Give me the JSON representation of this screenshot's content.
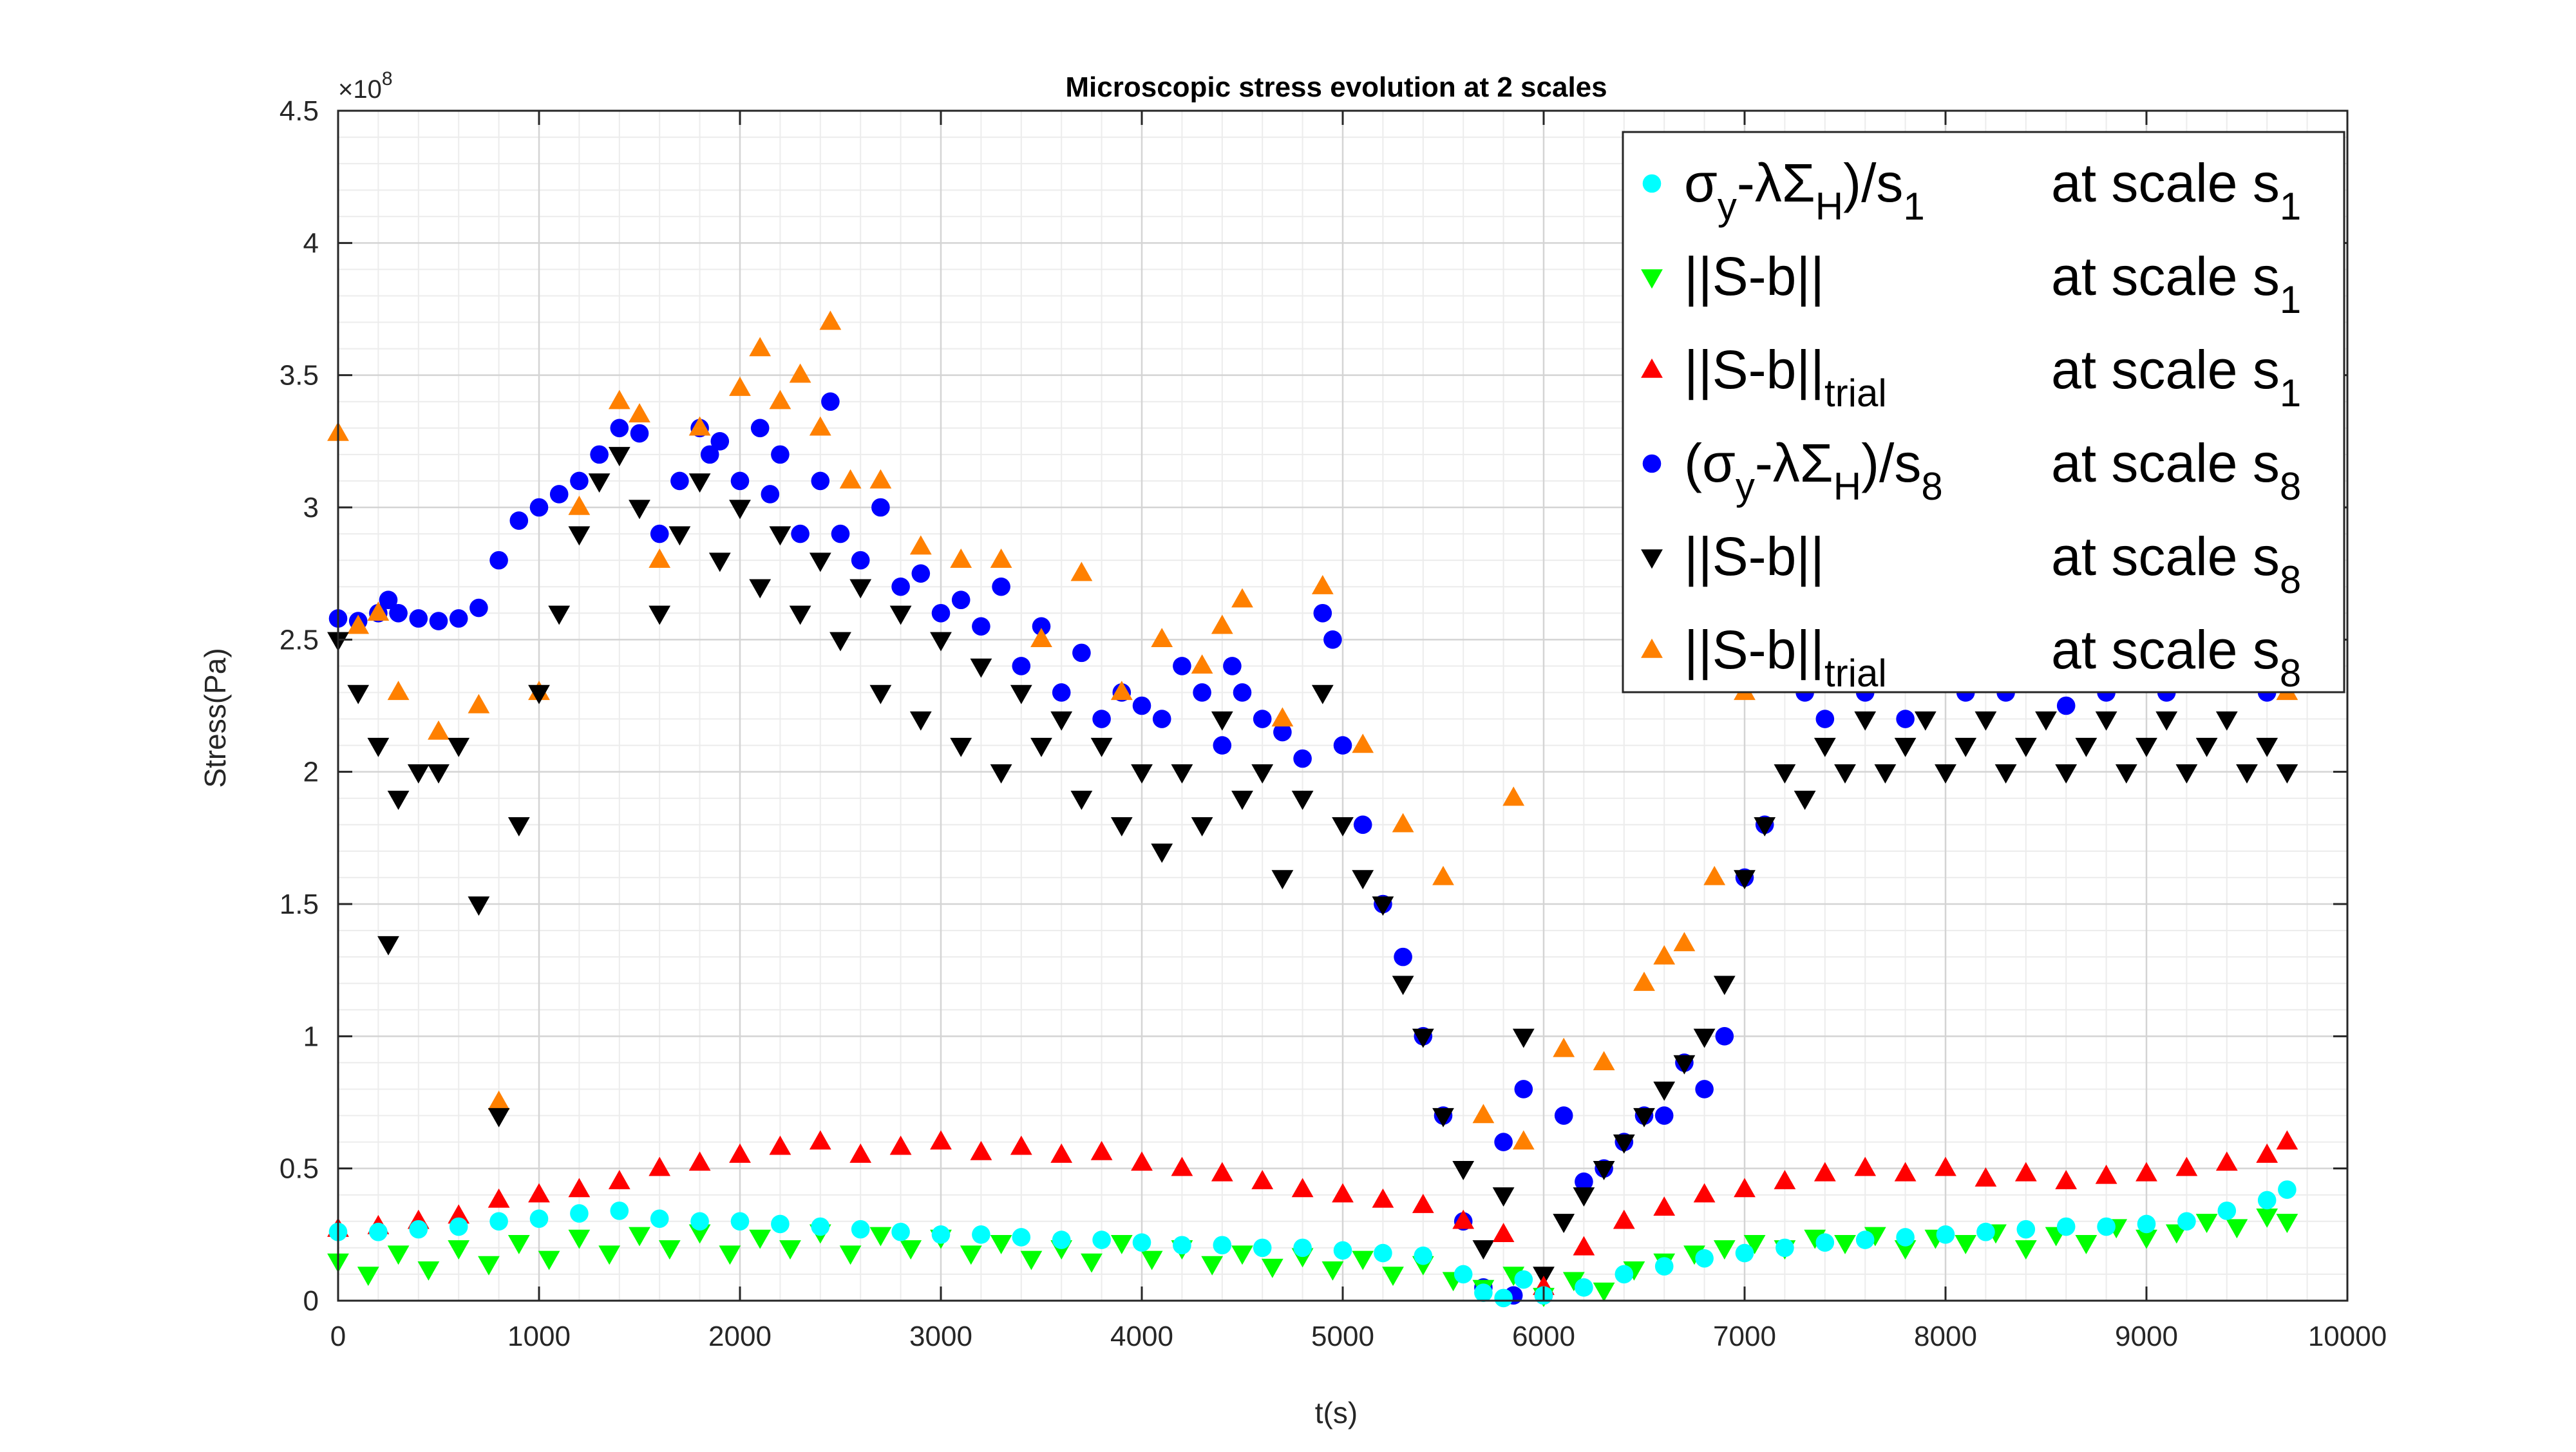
{
  "chart_data": {
    "type": "scatter",
    "title": "Microscopic stress evolution at 2 scales",
    "xlabel": "t(s)",
    "ylabel": "Stress(Pa)",
    "y_exponent_label": "×10",
    "y_exponent_power": "8",
    "xlim": [
      0,
      10000
    ],
    "ylim": [
      0,
      4.5
    ],
    "x_ticks": [
      "0",
      "1000",
      "2000",
      "3000",
      "4000",
      "5000",
      "6000",
      "7000",
      "8000",
      "9000",
      "10000"
    ],
    "y_ticks": [
      "0",
      "0.5",
      "1",
      "1.5",
      "2",
      "2.5",
      "3",
      "3.5",
      "4",
      "4.5"
    ],
    "grid": true,
    "minor_grid": true,
    "legend_position": "top-right",
    "colors": {
      "cyan": "#00ffff",
      "green": "#00ff00",
      "red": "#ff0000",
      "blue": "#0000ff",
      "black": "#000000",
      "orange": "#ff8000"
    },
    "legend": [
      {
        "marker": "circle",
        "color": "#00ffff",
        "label_main": "(σ",
        "label_parts": [
          [
            "σ",
            ""
          ],
          [
            "y",
            "sub"
          ],
          [
            "-λΣ",
            ""
          ],
          [
            "H",
            "sub"
          ],
          [
            ")/s",
            ""
          ],
          [
            "1",
            "sub"
          ]
        ],
        "scale_text": "at scale s",
        "scale_sub": "1"
      },
      {
        "marker": "triangle-down",
        "color": "#00ff00",
        "label_parts": [
          [
            "||S-b||",
            ""
          ]
        ],
        "scale_text": "at scale s",
        "scale_sub": "1"
      },
      {
        "marker": "triangle-up",
        "color": "#ff0000",
        "label_parts": [
          [
            "||S-b||",
            ""
          ],
          [
            "trial",
            "sub"
          ]
        ],
        "scale_text": "at scale s",
        "scale_sub": "1"
      },
      {
        "marker": "circle",
        "color": "#0000ff",
        "label_parts": [
          [
            "(σ",
            ""
          ],
          [
            "y",
            "sub"
          ],
          [
            "-λΣ",
            ""
          ],
          [
            "H",
            "sub"
          ],
          [
            ")/s",
            ""
          ],
          [
            "8",
            "sub"
          ]
        ],
        "scale_text": "at scale s",
        "scale_sub": "8"
      },
      {
        "marker": "triangle-down",
        "color": "#000000",
        "label_parts": [
          [
            "||S-b||",
            ""
          ]
        ],
        "scale_text": "at scale s",
        "scale_sub": "8"
      },
      {
        "marker": "triangle-up",
        "color": "#ff8000",
        "label_parts": [
          [
            "||S-b||",
            ""
          ],
          [
            "trial",
            "sub"
          ]
        ],
        "scale_text": "at scale s",
        "scale_sub": "8"
      }
    ],
    "series": [
      {
        "color": "#0000ff",
        "marker": "circle",
        "x": [
          0,
          100,
          200,
          250,
          300,
          400,
          500,
          600,
          700,
          800,
          900,
          1000,
          1100,
          1200,
          1300,
          1400,
          1500,
          1600,
          1700,
          1800,
          1850,
          1900,
          2000,
          2100,
          2150,
          2200,
          2300,
          2400,
          2450,
          2500,
          2600,
          2700,
          2800,
          2900,
          3000,
          3100,
          3200,
          3300,
          3400,
          3500,
          3600,
          3700,
          3800,
          3900,
          4000,
          4100,
          4200,
          4300,
          4400,
          4450,
          4500,
          4600,
          4700,
          4800,
          4900,
          4950,
          5000,
          5100,
          5200,
          5300,
          5400,
          5500,
          5600,
          5700,
          5800,
          5850,
          5900,
          6000,
          6100,
          6200,
          6300,
          6400,
          6500,
          6600,
          6700,
          6800,
          6900,
          7000,
          7100,
          7200,
          7300,
          7400,
          7500,
          7600,
          7700,
          7800,
          7900,
          8000,
          8100,
          8200,
          8300,
          8400,
          8500,
          8600,
          8700,
          8800,
          8900,
          9000,
          9100,
          9200,
          9300,
          9400,
          9500,
          9600,
          9700
        ],
        "y": [
          2.58,
          2.57,
          2.6,
          2.65,
          2.6,
          2.58,
          2.57,
          2.58,
          2.62,
          2.8,
          2.95,
          3.0,
          3.05,
          3.1,
          3.2,
          3.3,
          3.28,
          2.9,
          3.1,
          3.3,
          3.2,
          3.25,
          3.1,
          3.3,
          3.05,
          3.2,
          2.9,
          3.1,
          3.4,
          2.9,
          2.8,
          3.0,
          2.7,
          2.75,
          2.6,
          2.65,
          2.55,
          2.7,
          2.4,
          2.55,
          2.3,
          2.45,
          2.2,
          2.3,
          2.25,
          2.2,
          2.4,
          2.3,
          2.1,
          2.4,
          2.3,
          2.2,
          2.15,
          2.05,
          2.6,
          2.5,
          2.1,
          1.8,
          1.5,
          1.3,
          1.0,
          0.7,
          0.3,
          0.05,
          0.6,
          0.02,
          0.8,
          0.02,
          0.7,
          0.45,
          0.5,
          0.6,
          0.7,
          0.7,
          0.9,
          0.8,
          1.0,
          1.6,
          1.8,
          2.4,
          2.3,
          2.2,
          2.5,
          2.3,
          2.4,
          2.2,
          2.5,
          2.4,
          2.3,
          2.45,
          2.3,
          2.5,
          2.35,
          2.25,
          2.4,
          2.3,
          2.35,
          2.4,
          2.3,
          2.5,
          2.4,
          2.35,
          2.4,
          2.3,
          2.35
        ]
      },
      {
        "color": "#ff8000",
        "marker": "triangle-up",
        "x": [
          0,
          100,
          200,
          300,
          500,
          700,
          800,
          1000,
          1200,
          1400,
          1500,
          1600,
          1800,
          2000,
          2100,
          2200,
          2300,
          2400,
          2450,
          2550,
          2700,
          2900,
          3100,
          3300,
          3500,
          3700,
          3900,
          4100,
          4300,
          4400,
          4500,
          4700,
          4900,
          5100,
          5300,
          5500,
          5700,
          5850,
          5900,
          6100,
          6300,
          6500,
          6600,
          6700,
          6850,
          7000,
          7100,
          7300,
          7500,
          7700,
          7900,
          8100,
          8300,
          8500,
          8700,
          8900,
          9100,
          9300,
          9500,
          9700
        ],
        "y": [
          3.28,
          2.55,
          2.6,
          2.3,
          2.15,
          2.25,
          0.75,
          2.3,
          3.0,
          3.4,
          3.35,
          2.8,
          3.3,
          3.45,
          3.6,
          3.4,
          3.5,
          3.3,
          3.7,
          3.1,
          3.1,
          2.85,
          2.8,
          2.8,
          2.5,
          2.75,
          2.3,
          2.5,
          2.4,
          2.55,
          2.65,
          2.2,
          2.7,
          2.1,
          1.8,
          1.6,
          0.7,
          1.9,
          0.6,
          0.95,
          0.9,
          1.2,
          1.3,
          1.35,
          1.6,
          2.3,
          2.6,
          2.4,
          2.6,
          2.5,
          2.55,
          2.4,
          2.5,
          2.45,
          2.35,
          2.5,
          2.4,
          2.35,
          2.45,
          2.3
        ]
      },
      {
        "color": "#000000",
        "marker": "triangle-down",
        "x": [
          0,
          100,
          200,
          250,
          300,
          400,
          500,
          600,
          700,
          800,
          900,
          1000,
          1100,
          1200,
          1300,
          1400,
          1500,
          1600,
          1700,
          1800,
          1900,
          2000,
          2100,
          2200,
          2300,
          2400,
          2500,
          2600,
          2700,
          2800,
          2900,
          3000,
          3100,
          3200,
          3300,
          3400,
          3500,
          3600,
          3700,
          3800,
          3900,
          4000,
          4100,
          4200,
          4300,
          4400,
          4500,
          4600,
          4700,
          4800,
          4900,
          5000,
          5100,
          5200,
          5300,
          5400,
          5500,
          5600,
          5700,
          5800,
          5900,
          6000,
          6100,
          6200,
          6300,
          6400,
          6500,
          6600,
          6700,
          6800,
          6900,
          7000,
          7100,
          7200,
          7300,
          7400,
          7500,
          7600,
          7700,
          7800,
          7900,
          8000,
          8100,
          8200,
          8300,
          8400,
          8500,
          8600,
          8700,
          8800,
          8900,
          9000,
          9100,
          9200,
          9300,
          9400,
          9500,
          9600,
          9700
        ],
        "y": [
          2.5,
          2.3,
          2.1,
          1.35,
          1.9,
          2.0,
          2.0,
          2.1,
          1.5,
          0.7,
          1.8,
          2.3,
          2.6,
          2.9,
          3.1,
          3.2,
          3.0,
          2.6,
          2.9,
          3.1,
          2.8,
          3.0,
          2.7,
          2.9,
          2.6,
          2.8,
          2.5,
          2.7,
          2.3,
          2.6,
          2.2,
          2.5,
          2.1,
          2.4,
          2.0,
          2.3,
          2.1,
          2.2,
          1.9,
          2.1,
          1.8,
          2.0,
          1.7,
          2.0,
          1.8,
          2.2,
          1.9,
          2.0,
          1.6,
          1.9,
          2.3,
          1.8,
          1.6,
          1.5,
          1.2,
          1.0,
          0.7,
          0.5,
          0.2,
          0.4,
          1.0,
          0.1,
          0.3,
          0.4,
          0.5,
          0.6,
          0.7,
          0.8,
          0.9,
          1.0,
          1.2,
          1.6,
          1.8,
          2.0,
          1.9,
          2.1,
          2.0,
          2.2,
          2.0,
          2.1,
          2.2,
          2.0,
          2.1,
          2.2,
          2.0,
          2.1,
          2.2,
          2.0,
          2.1,
          2.2,
          2.0,
          2.1,
          2.2,
          2.0,
          2.1,
          2.2,
          2.0,
          2.1,
          2.0
        ]
      },
      {
        "color": "#ff0000",
        "marker": "triangle-up",
        "x": [
          0,
          200,
          400,
          600,
          800,
          1000,
          1200,
          1400,
          1600,
          1800,
          2000,
          2200,
          2400,
          2600,
          2800,
          3000,
          3200,
          3400,
          3600,
          3800,
          4000,
          4200,
          4400,
          4600,
          4800,
          5000,
          5200,
          5400,
          5600,
          5800,
          6000,
          6200,
          6400,
          6600,
          6800,
          7000,
          7200,
          7400,
          7600,
          7800,
          8000,
          8200,
          8400,
          8600,
          8800,
          9000,
          9200,
          9400,
          9600,
          9700
        ],
        "y": [
          0.27,
          0.28,
          0.3,
          0.32,
          0.38,
          0.4,
          0.42,
          0.45,
          0.5,
          0.52,
          0.55,
          0.58,
          0.6,
          0.55,
          0.58,
          0.6,
          0.56,
          0.58,
          0.55,
          0.56,
          0.52,
          0.5,
          0.48,
          0.45,
          0.42,
          0.4,
          0.38,
          0.36,
          0.3,
          0.25,
          0.05,
          0.2,
          0.3,
          0.35,
          0.4,
          0.42,
          0.45,
          0.48,
          0.5,
          0.48,
          0.5,
          0.46,
          0.48,
          0.45,
          0.47,
          0.48,
          0.5,
          0.52,
          0.55,
          0.6
        ]
      },
      {
        "color": "#00ff00",
        "marker": "triangle-down",
        "x": [
          0,
          150,
          300,
          450,
          600,
          750,
          900,
          1050,
          1200,
          1350,
          1500,
          1650,
          1800,
          1950,
          2100,
          2250,
          2400,
          2550,
          2700,
          2850,
          3000,
          3150,
          3300,
          3450,
          3600,
          3750,
          3900,
          4050,
          4200,
          4350,
          4500,
          4650,
          4800,
          4950,
          5100,
          5250,
          5400,
          5550,
          5700,
          5850,
          6000,
          6150,
          6300,
          6450,
          6600,
          6750,
          6900,
          7050,
          7200,
          7350,
          7500,
          7650,
          7800,
          7950,
          8100,
          8250,
          8400,
          8550,
          8700,
          8850,
          9000,
          9150,
          9300,
          9450,
          9600,
          9700
        ],
        "y": [
          0.15,
          0.1,
          0.18,
          0.12,
          0.2,
          0.14,
          0.22,
          0.16,
          0.24,
          0.18,
          0.25,
          0.2,
          0.26,
          0.18,
          0.24,
          0.2,
          0.26,
          0.18,
          0.25,
          0.2,
          0.24,
          0.18,
          0.22,
          0.16,
          0.2,
          0.15,
          0.22,
          0.16,
          0.2,
          0.14,
          0.18,
          0.13,
          0.17,
          0.12,
          0.16,
          0.1,
          0.14,
          0.08,
          0.05,
          0.1,
          0.02,
          0.08,
          0.04,
          0.12,
          0.15,
          0.18,
          0.2,
          0.22,
          0.2,
          0.24,
          0.22,
          0.25,
          0.2,
          0.24,
          0.22,
          0.26,
          0.2,
          0.25,
          0.22,
          0.28,
          0.24,
          0.26,
          0.3,
          0.28,
          0.32,
          0.3
        ]
      },
      {
        "color": "#00ffff",
        "marker": "circle",
        "x": [
          0,
          200,
          400,
          600,
          800,
          1000,
          1200,
          1400,
          1600,
          1800,
          2000,
          2200,
          2400,
          2600,
          2800,
          3000,
          3200,
          3400,
          3600,
          3800,
          4000,
          4200,
          4400,
          4600,
          4800,
          5000,
          5200,
          5400,
          5600,
          5700,
          5800,
          5900,
          6000,
          6200,
          6400,
          6600,
          6800,
          7000,
          7200,
          7400,
          7600,
          7800,
          8000,
          8200,
          8400,
          8600,
          8800,
          9000,
          9200,
          9400,
          9600,
          9700
        ],
        "y": [
          0.26,
          0.26,
          0.27,
          0.28,
          0.3,
          0.31,
          0.33,
          0.34,
          0.31,
          0.3,
          0.3,
          0.29,
          0.28,
          0.27,
          0.26,
          0.25,
          0.25,
          0.24,
          0.23,
          0.23,
          0.22,
          0.21,
          0.21,
          0.2,
          0.2,
          0.19,
          0.18,
          0.17,
          0.1,
          0.03,
          0.01,
          0.08,
          0.02,
          0.05,
          0.1,
          0.13,
          0.16,
          0.18,
          0.2,
          0.22,
          0.23,
          0.24,
          0.25,
          0.26,
          0.27,
          0.28,
          0.28,
          0.29,
          0.3,
          0.34,
          0.38,
          0.42
        ]
      }
    ]
  }
}
